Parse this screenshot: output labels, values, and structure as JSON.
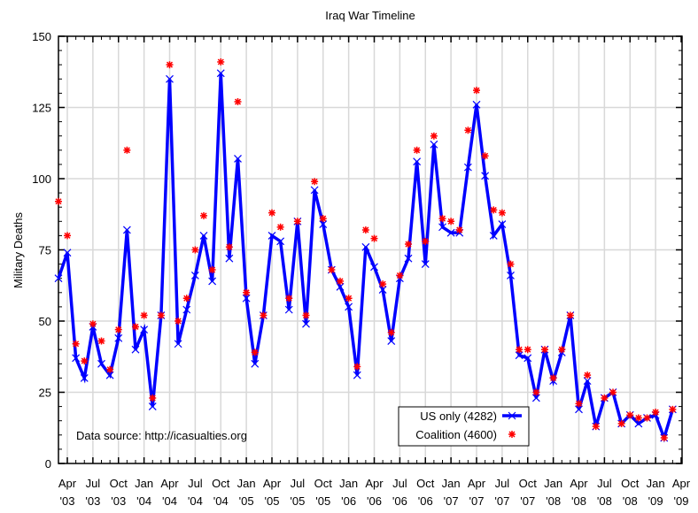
{
  "chart_data": {
    "type": "line",
    "title": "Iraq War Timeline",
    "ylabel": "Military Deaths",
    "xlabel": "",
    "ylim": [
      0,
      150
    ],
    "yticks": [
      "0",
      "25",
      "50",
      "75",
      "100",
      "125",
      "150"
    ],
    "ytick_values": [
      0,
      25,
      50,
      75,
      100,
      125,
      150
    ],
    "xticks": [
      {
        "m": "Apr",
        "y": "'03",
        "idx": 1
      },
      {
        "m": "Jul",
        "y": "'03",
        "idx": 4
      },
      {
        "m": "Oct",
        "y": "'03",
        "idx": 7
      },
      {
        "m": "Jan",
        "y": "'04",
        "idx": 10
      },
      {
        "m": "Apr",
        "y": "'04",
        "idx": 13
      },
      {
        "m": "Jul",
        "y": "'04",
        "idx": 16
      },
      {
        "m": "Oct",
        "y": "'04",
        "idx": 19
      },
      {
        "m": "Jan",
        "y": "'05",
        "idx": 22
      },
      {
        "m": "Apr",
        "y": "'05",
        "idx": 25
      },
      {
        "m": "Jul",
        "y": "'05",
        "idx": 28
      },
      {
        "m": "Oct",
        "y": "'05",
        "idx": 31
      },
      {
        "m": "Jan",
        "y": "'06",
        "idx": 34
      },
      {
        "m": "Apr",
        "y": "'06",
        "idx": 37
      },
      {
        "m": "Jul",
        "y": "'06",
        "idx": 40
      },
      {
        "m": "Oct",
        "y": "'06",
        "idx": 43
      },
      {
        "m": "Jan",
        "y": "'07",
        "idx": 46
      },
      {
        "m": "Apr",
        "y": "'07",
        "idx": 49
      },
      {
        "m": "Jul",
        "y": "'07",
        "idx": 52
      },
      {
        "m": "Oct",
        "y": "'07",
        "idx": 55
      },
      {
        "m": "Jan",
        "y": "'08",
        "idx": 58
      },
      {
        "m": "Apr",
        "y": "'08",
        "idx": 61
      },
      {
        "m": "Jul",
        "y": "'08",
        "idx": 64
      },
      {
        "m": "Oct",
        "y": "'08",
        "idx": 67
      },
      {
        "m": "Jan",
        "y": "'09",
        "idx": 70
      },
      {
        "m": "Apr",
        "y": "'09",
        "idx": 73
      }
    ],
    "x_range_months": [
      0,
      73
    ],
    "grid": true,
    "legend_position": "bottom-right",
    "annotation": "Data source: http://icasualties.org",
    "series": [
      {
        "name": "US only (4282)",
        "color": "#0000ff",
        "marker": "x",
        "values": [
          65,
          74,
          37,
          30,
          48,
          35,
          31,
          44,
          82,
          40,
          47,
          20,
          52,
          135,
          42,
          54,
          66,
          80,
          64,
          137,
          72,
          107,
          58,
          35,
          52,
          80,
          78,
          54,
          85,
          49,
          96,
          84,
          68,
          62,
          55,
          31,
          76,
          69,
          61,
          43,
          65,
          72,
          106,
          70,
          112,
          83,
          81,
          81,
          104,
          126,
          101,
          80,
          84,
          66,
          38,
          37,
          23,
          40,
          29,
          39,
          52,
          19,
          29,
          13,
          23,
          25,
          14,
          17,
          14,
          16,
          17,
          9,
          19
        ]
      },
      {
        "name": "Coalition (4600)",
        "color": "#ff0000",
        "marker": "*",
        "values": [
          92,
          80,
          42,
          36,
          49,
          43,
          33,
          47,
          110,
          48,
          52,
          23,
          52,
          140,
          50,
          58,
          75,
          87,
          68,
          141,
          76,
          127,
          60,
          39,
          52,
          88,
          83,
          58,
          85,
          52,
          99,
          86,
          68,
          64,
          58,
          34,
          82,
          79,
          63,
          46,
          66,
          77,
          110,
          78,
          115,
          86,
          85,
          82,
          117,
          131,
          108,
          89,
          88,
          70,
          40,
          40,
          25,
          40,
          30,
          40,
          52,
          21,
          31,
          13,
          23,
          25,
          14,
          17,
          16,
          16,
          18,
          9,
          19
        ]
      }
    ]
  }
}
